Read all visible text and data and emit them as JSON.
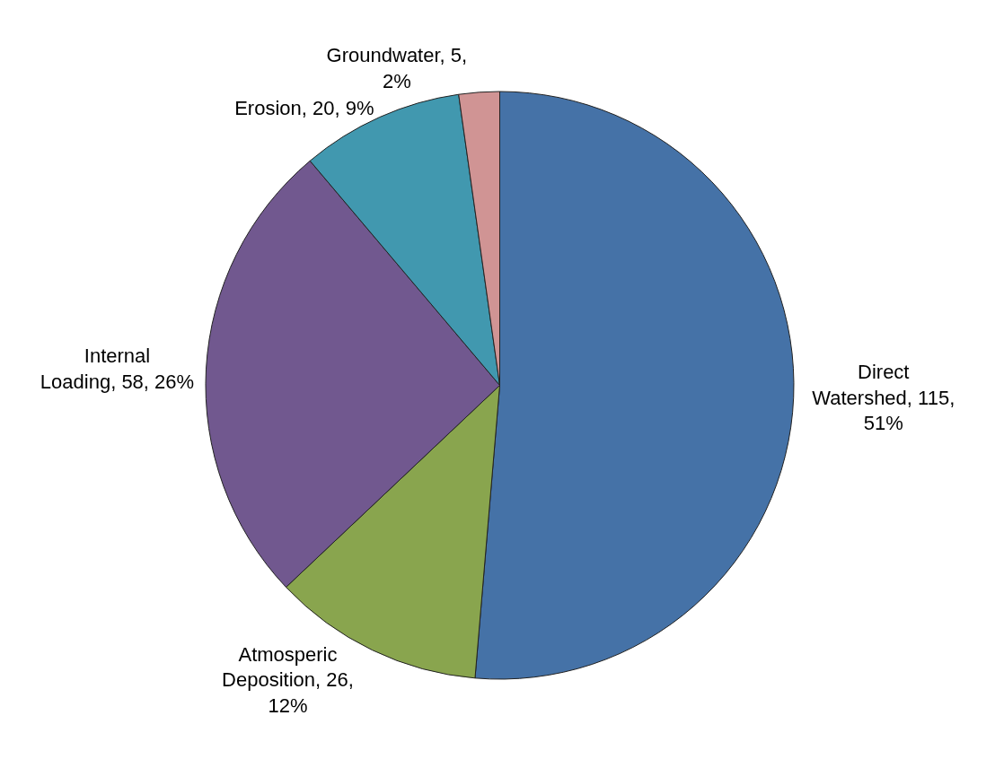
{
  "chart_data": {
    "type": "pie",
    "categories": [
      "Direct Watershed",
      "Atmosperic Deposition",
      "Internal Loading",
      "Erosion",
      "Groundwater"
    ],
    "values": [
      115,
      26,
      58,
      20,
      5
    ],
    "value_labels": [
      "115, 51%",
      "26, 12%",
      "58, 26%",
      "20, 9%",
      "5, 2%"
    ],
    "colors": [
      "#4572a7",
      "#89a54e",
      "#71588f",
      "#4198af",
      "#d09494"
    ],
    "legend": false
  }
}
